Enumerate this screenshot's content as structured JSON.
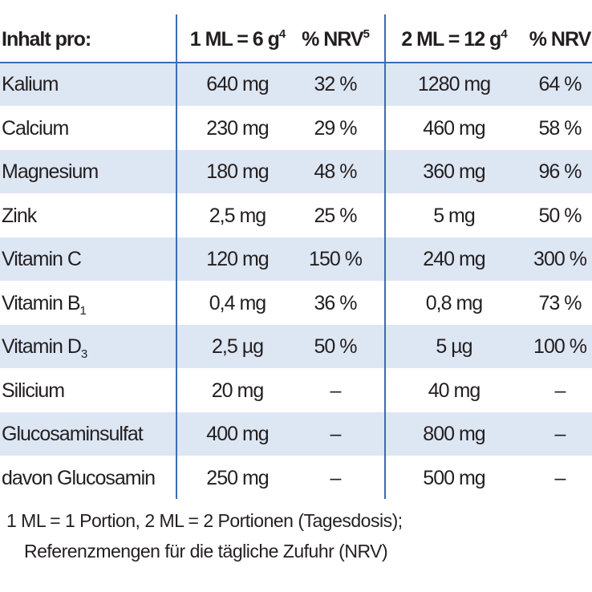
{
  "header": {
    "label": "Inhalt pro:",
    "columns": [
      {
        "text": "1 ML = 6 g",
        "sup": "4"
      },
      {
        "text": "% NRV",
        "sup": "5"
      },
      {
        "text": "2 ML = 12 g",
        "sup": "4"
      },
      {
        "text": "% NRV"
      }
    ]
  },
  "rows": [
    {
      "name": "Kalium",
      "cells": [
        "640 mg",
        "32 %",
        "1280 mg",
        "64 %"
      ]
    },
    {
      "name": "Calcium",
      "cells": [
        "230 mg",
        "29 %",
        "460 mg",
        "58 %"
      ]
    },
    {
      "name": "Magnesium",
      "cells": [
        "180 mg",
        "48 %",
        "360 mg",
        "96 %"
      ]
    },
    {
      "name": "Zink",
      "cells": [
        "2,5 mg",
        "25 %",
        "5 mg",
        "50 %"
      ]
    },
    {
      "name": "Vitamin C",
      "cells": [
        "120 mg",
        "150 %",
        "240 mg",
        "300 %"
      ]
    },
    {
      "name": "Vitamin B",
      "sub": "1",
      "cells": [
        "0,4 mg",
        "36 %",
        "0,8 mg",
        "73 %"
      ]
    },
    {
      "name": "Vitamin D",
      "sub": "3",
      "cells": [
        "2,5 µg",
        "50 %",
        "5 µg",
        "100 %"
      ]
    },
    {
      "name": "Silicium",
      "cells": [
        "20 mg",
        "–",
        "40 mg",
        "–"
      ]
    },
    {
      "name": "Glucosaminsulfat",
      "cells": [
        "400 mg",
        "–",
        "800 mg",
        "–"
      ]
    },
    {
      "name": "davon Glucosamin",
      "cells": [
        "250 mg",
        "–",
        "500 mg",
        "–"
      ]
    }
  ],
  "footnotes": [
    "1 ML = 1 Portion, 2 ML = 2 Portionen (Tagesdosis);",
    "Referenzmengen für die tägliche Zufuhr (NRV)"
  ]
}
